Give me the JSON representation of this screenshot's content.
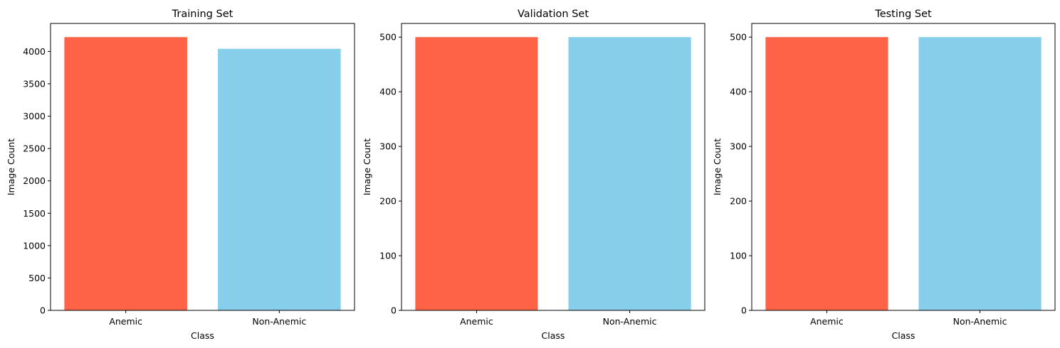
{
  "colors": {
    "anemic": "#FF6347",
    "non_anemic": "#87CEEB",
    "axis": "#000000",
    "background": "#FFFFFF"
  },
  "chart_data": [
    {
      "type": "bar",
      "title": "Training Set",
      "xlabel": "Class",
      "ylabel": "Image Count",
      "categories": [
        "Anemic",
        "Non-Anemic"
      ],
      "values": [
        4221,
        4040
      ],
      "ylim": [
        0,
        4432
      ],
      "yticks": [
        0,
        500,
        1000,
        1500,
        2000,
        2500,
        3000,
        3500,
        4000
      ],
      "grid": false
    },
    {
      "type": "bar",
      "title": "Validation Set",
      "xlabel": "Class",
      "ylabel": "Image Count",
      "categories": [
        "Anemic",
        "Non-Anemic"
      ],
      "values": [
        500,
        500
      ],
      "ylim": [
        0,
        525
      ],
      "yticks": [
        0,
        100,
        200,
        300,
        400,
        500
      ],
      "grid": false
    },
    {
      "type": "bar",
      "title": "Testing Set",
      "xlabel": "Class",
      "ylabel": "Image Count",
      "categories": [
        "Anemic",
        "Non-Anemic"
      ],
      "values": [
        500,
        500
      ],
      "ylim": [
        0,
        525
      ],
      "yticks": [
        0,
        100,
        200,
        300,
        400,
        500
      ],
      "grid": false
    }
  ]
}
